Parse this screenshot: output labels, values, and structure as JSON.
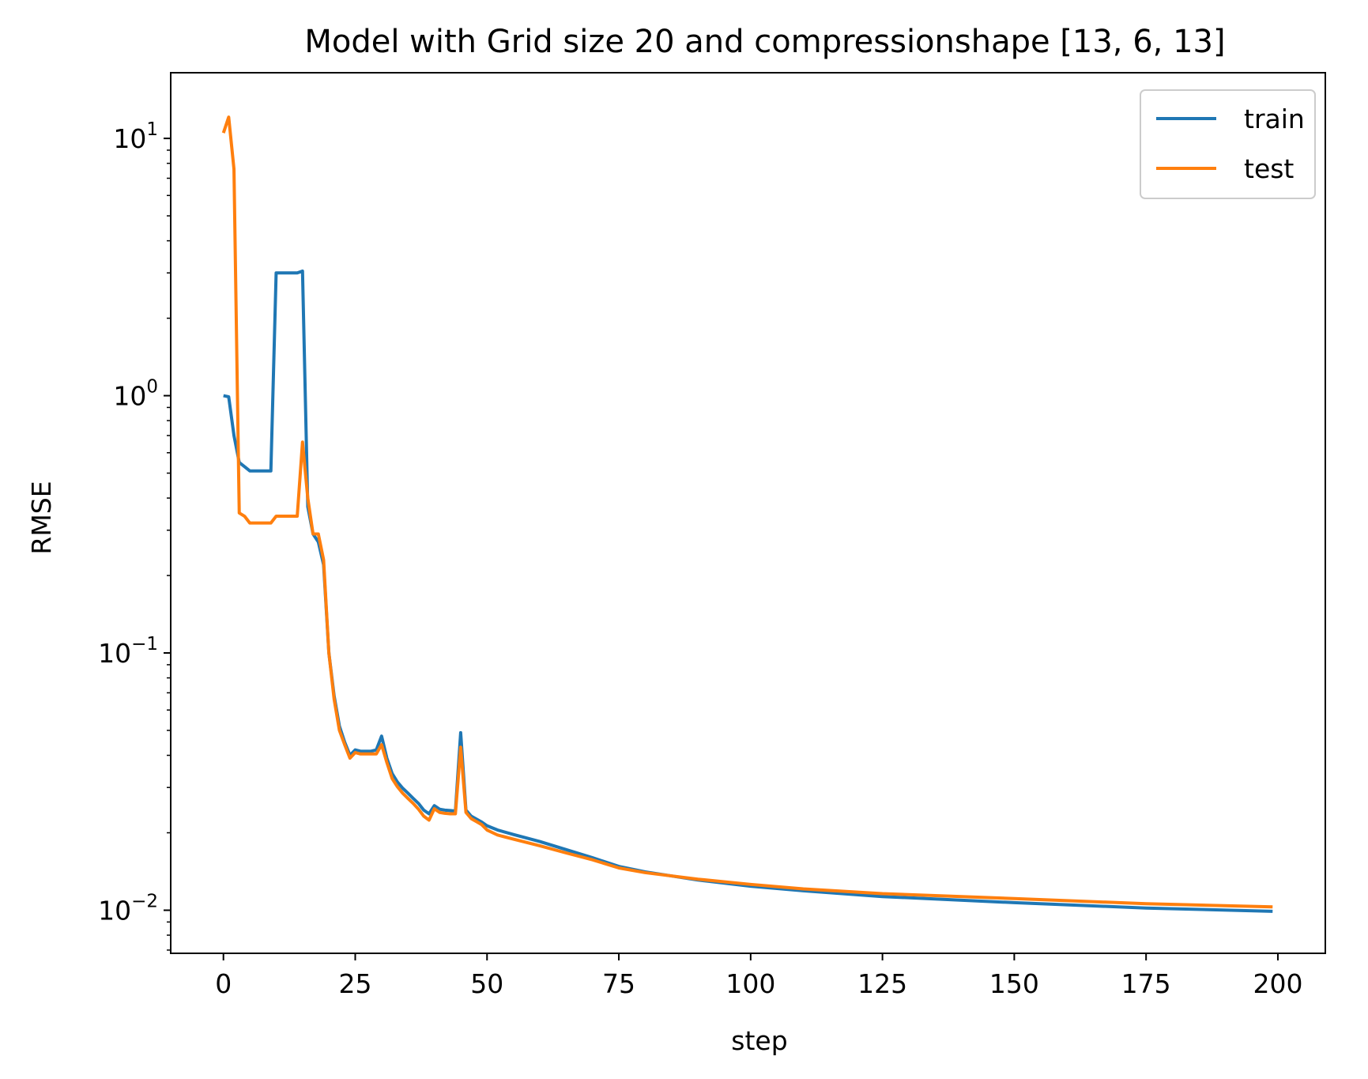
{
  "chart_data": {
    "type": "line",
    "title": "Model with Grid size 20 and compressionshape [13, 6, 13]",
    "xlabel": "step",
    "ylabel": "RMSE",
    "xlim": [
      -10,
      209
    ],
    "ylim": [
      0.0068,
      18.0
    ],
    "yscale": "log",
    "grid": false,
    "legend_position": "top-right",
    "x_ticks": [
      0,
      25,
      50,
      75,
      100,
      125,
      150,
      175,
      200
    ],
    "x_tick_labels": [
      "0",
      "25",
      "50",
      "75",
      "100",
      "125",
      "150",
      "175",
      "200"
    ],
    "y_ticks": [
      {
        "value": 0.01,
        "base": "10",
        "exp": "−2"
      },
      {
        "value": 0.1,
        "base": "10",
        "exp": "−1"
      },
      {
        "value": 1,
        "base": "10",
        "exp": "0"
      },
      {
        "value": 10,
        "base": "10",
        "exp": "1"
      }
    ],
    "series": [
      {
        "name": "train",
        "color": "#1f77b4",
        "points": [
          [
            0,
            1.0
          ],
          [
            1,
            0.99
          ],
          [
            2,
            0.7
          ],
          [
            3,
            0.55
          ],
          [
            4,
            0.53
          ],
          [
            5,
            0.51
          ],
          [
            6,
            0.51
          ],
          [
            7,
            0.51
          ],
          [
            8,
            0.51
          ],
          [
            9,
            0.51
          ],
          [
            10,
            3.0
          ],
          [
            11,
            3.0
          ],
          [
            12,
            3.0
          ],
          [
            13,
            3.0
          ],
          [
            14,
            3.0
          ],
          [
            15,
            3.05
          ],
          [
            16,
            0.37
          ],
          [
            17,
            0.29
          ],
          [
            18,
            0.27
          ],
          [
            19,
            0.22
          ],
          [
            20,
            0.1
          ],
          [
            21,
            0.068
          ],
          [
            22,
            0.052
          ],
          [
            23,
            0.045
          ],
          [
            24,
            0.04
          ],
          [
            25,
            0.042
          ],
          [
            26,
            0.0415
          ],
          [
            27,
            0.0415
          ],
          [
            28,
            0.0415
          ],
          [
            29,
            0.042
          ],
          [
            30,
            0.0475
          ],
          [
            31,
            0.039
          ],
          [
            32,
            0.034
          ],
          [
            33,
            0.0315
          ],
          [
            34,
            0.0298
          ],
          [
            35,
            0.0285
          ],
          [
            36,
            0.0272
          ],
          [
            37,
            0.026
          ],
          [
            38,
            0.0245
          ],
          [
            39,
            0.0237
          ],
          [
            40,
            0.0255
          ],
          [
            41,
            0.0247
          ],
          [
            42,
            0.0245
          ],
          [
            43,
            0.0244
          ],
          [
            44,
            0.0243
          ],
          [
            45,
            0.049
          ],
          [
            46,
            0.0245
          ],
          [
            47,
            0.0232
          ],
          [
            48,
            0.0226
          ],
          [
            49,
            0.022
          ],
          [
            50,
            0.0213
          ],
          [
            52,
            0.0205
          ],
          [
            55,
            0.0197
          ],
          [
            60,
            0.0185
          ],
          [
            65,
            0.0172
          ],
          [
            70,
            0.016
          ],
          [
            75,
            0.0148
          ],
          [
            80,
            0.0141
          ],
          [
            90,
            0.0131
          ],
          [
            100,
            0.0124
          ],
          [
            110,
            0.0119
          ],
          [
            125,
            0.0113
          ],
          [
            150,
            0.0107
          ],
          [
            175,
            0.0102
          ],
          [
            199,
            0.0099
          ]
        ]
      },
      {
        "name": "test",
        "color": "#ff7f0e",
        "points": [
          [
            0,
            10.5
          ],
          [
            1,
            12.1
          ],
          [
            2,
            7.6
          ],
          [
            3,
            0.35
          ],
          [
            4,
            0.34
          ],
          [
            5,
            0.32
          ],
          [
            6,
            0.32
          ],
          [
            7,
            0.32
          ],
          [
            8,
            0.32
          ],
          [
            9,
            0.32
          ],
          [
            10,
            0.34
          ],
          [
            11,
            0.34
          ],
          [
            12,
            0.34
          ],
          [
            13,
            0.34
          ],
          [
            14,
            0.34
          ],
          [
            15,
            0.66
          ],
          [
            16,
            0.4
          ],
          [
            17,
            0.29
          ],
          [
            18,
            0.29
          ],
          [
            19,
            0.23
          ],
          [
            20,
            0.1
          ],
          [
            21,
            0.066
          ],
          [
            22,
            0.05
          ],
          [
            23,
            0.044
          ],
          [
            24,
            0.039
          ],
          [
            25,
            0.041
          ],
          [
            26,
            0.0405
          ],
          [
            27,
            0.0405
          ],
          [
            28,
            0.0405
          ],
          [
            29,
            0.0405
          ],
          [
            30,
            0.044
          ],
          [
            31,
            0.0375
          ],
          [
            32,
            0.0325
          ],
          [
            33,
            0.0302
          ],
          [
            34,
            0.0285
          ],
          [
            35,
            0.0272
          ],
          [
            36,
            0.026
          ],
          [
            37,
            0.0247
          ],
          [
            38,
            0.0232
          ],
          [
            39,
            0.0224
          ],
          [
            40,
            0.0248
          ],
          [
            41,
            0.024
          ],
          [
            42,
            0.0238
          ],
          [
            43,
            0.0237
          ],
          [
            44,
            0.0237
          ],
          [
            45,
            0.043
          ],
          [
            46,
            0.024
          ],
          [
            47,
            0.0227
          ],
          [
            48,
            0.0221
          ],
          [
            49,
            0.0215
          ],
          [
            50,
            0.0205
          ],
          [
            52,
            0.0196
          ],
          [
            55,
            0.0189
          ],
          [
            60,
            0.0178
          ],
          [
            65,
            0.0167
          ],
          [
            70,
            0.0157
          ],
          [
            75,
            0.0146
          ],
          [
            80,
            0.014
          ],
          [
            90,
            0.0132
          ],
          [
            100,
            0.0126
          ],
          [
            110,
            0.0121
          ],
          [
            125,
            0.0116
          ],
          [
            150,
            0.0111
          ],
          [
            175,
            0.0106
          ],
          [
            199,
            0.0103
          ]
        ]
      }
    ]
  }
}
